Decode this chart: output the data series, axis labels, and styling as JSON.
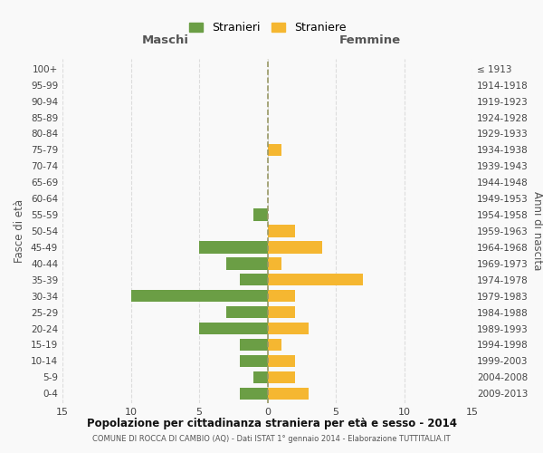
{
  "age_groups": [
    "0-4",
    "5-9",
    "10-14",
    "15-19",
    "20-24",
    "25-29",
    "30-34",
    "35-39",
    "40-44",
    "45-49",
    "50-54",
    "55-59",
    "60-64",
    "65-69",
    "70-74",
    "75-79",
    "80-84",
    "85-89",
    "90-94",
    "95-99",
    "100+"
  ],
  "birth_years": [
    "2009-2013",
    "2004-2008",
    "1999-2003",
    "1994-1998",
    "1989-1993",
    "1984-1988",
    "1979-1983",
    "1974-1978",
    "1969-1973",
    "1964-1968",
    "1959-1963",
    "1954-1958",
    "1949-1953",
    "1944-1948",
    "1939-1943",
    "1934-1938",
    "1929-1933",
    "1924-1928",
    "1919-1923",
    "1914-1918",
    "≤ 1913"
  ],
  "maschi": [
    2,
    1,
    2,
    2,
    5,
    3,
    10,
    2,
    3,
    5,
    0,
    1,
    0,
    0,
    0,
    0,
    0,
    0,
    0,
    0,
    0
  ],
  "femmine": [
    3,
    2,
    2,
    1,
    3,
    2,
    2,
    7,
    1,
    4,
    2,
    0,
    0,
    0,
    0,
    1,
    0,
    0,
    0,
    0,
    0
  ],
  "color_maschi": "#6b9e45",
  "color_femmine": "#f5b731",
  "title": "Popolazione per cittadinanza straniera per età e sesso - 2014",
  "subtitle": "COMUNE DI ROCCA DI CAMBIO (AQ) - Dati ISTAT 1° gennaio 2014 - Elaborazione TUTTITALIA.IT",
  "ylabel_left": "Fasce di età",
  "ylabel_right": "Anni di nascita",
  "xlabel_maschi": "Maschi",
  "xlabel_femmine": "Femmine",
  "legend_maschi": "Stranieri",
  "legend_femmine": "Straniere",
  "xlim": 15,
  "bg_color": "#f9f9f9",
  "grid_color": "#dddddd",
  "vline_color": "#999966"
}
